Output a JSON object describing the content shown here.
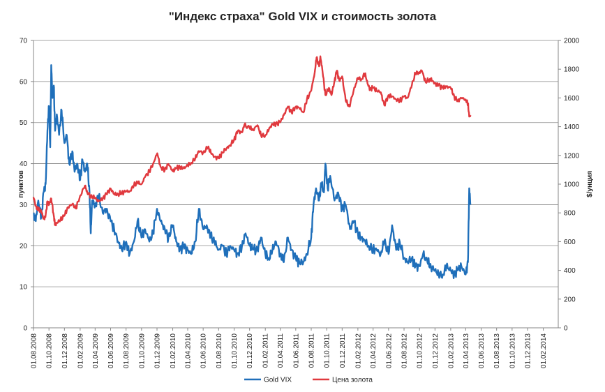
{
  "chart_data": {
    "type": "line",
    "title": "\"Индекс страха\" Gold VIX и стоимость золота",
    "y_left_label": "пунктов",
    "y_right_label": "$/унция",
    "y_left_range": [
      0,
      70
    ],
    "y_left_ticks": [
      "0",
      "10",
      "20",
      "30",
      "40",
      "50",
      "60",
      "70"
    ],
    "y_right_range": [
      0,
      2000
    ],
    "y_right_ticks": [
      "0",
      "200",
      "400",
      "600",
      "800",
      "1000",
      "1200",
      "1400",
      "1600",
      "1800",
      "2000"
    ],
    "x_range": [
      "2008-08-01",
      "2014-04-01"
    ],
    "x_ticks": [
      "01.08.2008",
      "01.10.2008",
      "01.12.2008",
      "01.02.2009",
      "01.04.2009",
      "01.06.2009",
      "01.08.2009",
      "01.10.2009",
      "01.12.2009",
      "01.02.2010",
      "01.04.2010",
      "01.06.2010",
      "01.08.2010",
      "01.10.2010",
      "01.12.2010",
      "01.02.2011",
      "01.04.2011",
      "01.06.2011",
      "01.08.2011",
      "01.10.2011",
      "01.12.2011",
      "01.02.2012",
      "01.04.2012",
      "01.06.2012",
      "01.08.2012",
      "01.10.2012",
      "01.12.2012",
      "01.02.2013",
      "01.04.2013",
      "01.06.2013",
      "01.08.2013",
      "01.10.2013",
      "01.12.2013",
      "01.02.2014"
    ],
    "grid": "horizontal",
    "legend": "bottom",
    "series": [
      {
        "name": "Gold VIX",
        "axis": "left",
        "color": "#1f6fba",
        "points": [
          [
            "2008-08-01",
            28
          ],
          [
            "2008-08-10",
            26
          ],
          [
            "2008-08-20",
            31
          ],
          [
            "2008-09-01",
            27
          ],
          [
            "2008-09-10",
            33
          ],
          [
            "2008-09-18",
            35
          ],
          [
            "2008-09-25",
            48
          ],
          [
            "2008-10-01",
            54
          ],
          [
            "2008-10-06",
            44
          ],
          [
            "2008-10-10",
            64
          ],
          [
            "2008-10-15",
            56
          ],
          [
            "2008-10-20",
            59
          ],
          [
            "2008-10-25",
            48
          ],
          [
            "2008-11-01",
            52
          ],
          [
            "2008-11-10",
            47
          ],
          [
            "2008-11-20",
            53
          ],
          [
            "2008-12-01",
            45
          ],
          [
            "2008-12-10",
            47
          ],
          [
            "2008-12-20",
            40
          ],
          [
            "2009-01-01",
            43
          ],
          [
            "2009-01-10",
            38
          ],
          [
            "2009-01-20",
            40
          ],
          [
            "2009-02-01",
            36
          ],
          [
            "2009-02-10",
            41
          ],
          [
            "2009-02-20",
            38
          ],
          [
            "2009-03-01",
            40
          ],
          [
            "2009-03-10",
            33
          ],
          [
            "2009-03-15",
            23
          ],
          [
            "2009-03-20",
            31
          ],
          [
            "2009-04-01",
            30
          ],
          [
            "2009-04-15",
            32
          ],
          [
            "2009-05-01",
            28
          ],
          [
            "2009-05-15",
            29
          ],
          [
            "2009-06-01",
            26
          ],
          [
            "2009-06-15",
            24
          ],
          [
            "2009-07-01",
            21
          ],
          [
            "2009-07-15",
            19
          ],
          [
            "2009-08-01",
            21
          ],
          [
            "2009-08-15",
            18
          ],
          [
            "2009-09-01",
            21
          ],
          [
            "2009-09-15",
            26
          ],
          [
            "2009-10-01",
            22
          ],
          [
            "2009-10-15",
            24
          ],
          [
            "2009-11-01",
            21
          ],
          [
            "2009-11-15",
            23
          ],
          [
            "2009-12-01",
            29
          ],
          [
            "2009-12-15",
            26
          ],
          [
            "2010-01-01",
            24
          ],
          [
            "2010-01-15",
            22
          ],
          [
            "2010-02-01",
            25
          ],
          [
            "2010-02-15",
            21
          ],
          [
            "2010-03-01",
            19
          ],
          [
            "2010-03-15",
            20
          ],
          [
            "2010-04-01",
            19
          ],
          [
            "2010-04-15",
            18
          ],
          [
            "2010-05-01",
            21
          ],
          [
            "2010-05-15",
            29
          ],
          [
            "2010-06-01",
            24
          ],
          [
            "2010-06-15",
            25
          ],
          [
            "2010-07-01",
            22
          ],
          [
            "2010-07-15",
            21
          ],
          [
            "2010-08-01",
            19
          ],
          [
            "2010-08-15",
            20
          ],
          [
            "2010-09-01",
            18
          ],
          [
            "2010-09-15",
            20
          ],
          [
            "2010-10-01",
            19
          ],
          [
            "2010-10-15",
            18
          ],
          [
            "2010-11-01",
            20
          ],
          [
            "2010-11-15",
            23
          ],
          [
            "2010-12-01",
            20
          ],
          [
            "2010-12-15",
            19
          ],
          [
            "2011-01-01",
            19
          ],
          [
            "2011-01-15",
            22
          ],
          [
            "2011-02-01",
            18
          ],
          [
            "2011-02-15",
            17
          ],
          [
            "2011-03-01",
            19
          ],
          [
            "2011-03-15",
            21
          ],
          [
            "2011-04-01",
            18
          ],
          [
            "2011-04-15",
            16
          ],
          [
            "2011-05-01",
            22
          ],
          [
            "2011-05-15",
            19
          ],
          [
            "2011-06-01",
            17
          ],
          [
            "2011-06-15",
            16
          ],
          [
            "2011-07-01",
            16
          ],
          [
            "2011-07-15",
            18
          ],
          [
            "2011-08-01",
            22
          ],
          [
            "2011-08-10",
            30
          ],
          [
            "2011-08-20",
            34
          ],
          [
            "2011-09-01",
            31
          ],
          [
            "2011-09-10",
            35
          ],
          [
            "2011-09-20",
            33
          ],
          [
            "2011-09-26",
            40
          ],
          [
            "2011-10-05",
            34
          ],
          [
            "2011-10-15",
            37
          ],
          [
            "2011-11-01",
            31
          ],
          [
            "2011-11-15",
            33
          ],
          [
            "2011-12-01",
            29
          ],
          [
            "2011-12-15",
            30
          ],
          [
            "2012-01-01",
            24
          ],
          [
            "2012-01-15",
            26
          ],
          [
            "2012-02-01",
            23
          ],
          [
            "2012-02-15",
            22
          ],
          [
            "2012-03-01",
            21
          ],
          [
            "2012-03-15",
            20
          ],
          [
            "2012-04-01",
            19
          ],
          [
            "2012-04-15",
            19
          ],
          [
            "2012-05-01",
            18
          ],
          [
            "2012-05-15",
            21
          ],
          [
            "2012-06-01",
            18
          ],
          [
            "2012-06-15",
            25
          ],
          [
            "2012-07-01",
            19
          ],
          [
            "2012-07-15",
            21
          ],
          [
            "2012-08-01",
            17
          ],
          [
            "2012-08-15",
            16
          ],
          [
            "2012-09-01",
            17
          ],
          [
            "2012-09-15",
            15
          ],
          [
            "2012-10-01",
            15
          ],
          [
            "2012-10-15",
            18
          ],
          [
            "2012-11-01",
            16
          ],
          [
            "2012-11-15",
            15
          ],
          [
            "2012-12-01",
            14
          ],
          [
            "2012-12-15",
            13
          ],
          [
            "2013-01-01",
            13
          ],
          [
            "2013-01-15",
            15
          ],
          [
            "2013-02-01",
            14
          ],
          [
            "2013-02-15",
            13
          ],
          [
            "2013-03-01",
            14
          ],
          [
            "2013-03-15",
            15
          ],
          [
            "2013-04-01",
            13
          ],
          [
            "2013-04-10",
            16
          ],
          [
            "2013-04-15",
            34
          ],
          [
            "2013-04-20",
            30
          ]
        ]
      },
      {
        "name": "Цена золота",
        "axis": "right",
        "color": "#e0393e",
        "points": [
          [
            "2008-08-01",
            910
          ],
          [
            "2008-08-10",
            850
          ],
          [
            "2008-08-20",
            820
          ],
          [
            "2008-09-01",
            810
          ],
          [
            "2008-09-10",
            760
          ],
          [
            "2008-09-17",
            770
          ],
          [
            "2008-09-25",
            880
          ],
          [
            "2008-10-01",
            860
          ],
          [
            "2008-10-10",
            900
          ],
          [
            "2008-10-20",
            780
          ],
          [
            "2008-10-25",
            720
          ],
          [
            "2008-11-01",
            730
          ],
          [
            "2008-11-15",
            750
          ],
          [
            "2008-12-01",
            780
          ],
          [
            "2008-12-15",
            840
          ],
          [
            "2009-01-01",
            860
          ],
          [
            "2009-01-15",
            830
          ],
          [
            "2009-02-01",
            920
          ],
          [
            "2009-02-20",
            990
          ],
          [
            "2009-03-01",
            940
          ],
          [
            "2009-03-15",
            920
          ],
          [
            "2009-04-01",
            900
          ],
          [
            "2009-04-15",
            880
          ],
          [
            "2009-05-01",
            900
          ],
          [
            "2009-05-15",
            930
          ],
          [
            "2009-06-01",
            970
          ],
          [
            "2009-06-15",
            930
          ],
          [
            "2009-07-01",
            930
          ],
          [
            "2009-07-15",
            940
          ],
          [
            "2009-08-01",
            950
          ],
          [
            "2009-08-15",
            950
          ],
          [
            "2009-09-01",
            990
          ],
          [
            "2009-09-15",
            1010
          ],
          [
            "2009-10-01",
            1000
          ],
          [
            "2009-10-15",
            1050
          ],
          [
            "2009-11-01",
            1090
          ],
          [
            "2009-11-15",
            1140
          ],
          [
            "2009-12-02",
            1215
          ],
          [
            "2009-12-15",
            1120
          ],
          [
            "2010-01-01",
            1100
          ],
          [
            "2010-01-15",
            1140
          ],
          [
            "2010-02-01",
            1090
          ],
          [
            "2010-02-15",
            1110
          ],
          [
            "2010-03-01",
            1120
          ],
          [
            "2010-03-15",
            1110
          ],
          [
            "2010-04-01",
            1130
          ],
          [
            "2010-04-15",
            1150
          ],
          [
            "2010-05-01",
            1180
          ],
          [
            "2010-05-15",
            1230
          ],
          [
            "2010-06-01",
            1220
          ],
          [
            "2010-06-20",
            1255
          ],
          [
            "2010-07-01",
            1220
          ],
          [
            "2010-07-15",
            1190
          ],
          [
            "2010-08-01",
            1180
          ],
          [
            "2010-08-15",
            1220
          ],
          [
            "2010-09-01",
            1250
          ],
          [
            "2010-09-15",
            1270
          ],
          [
            "2010-10-01",
            1310
          ],
          [
            "2010-10-15",
            1370
          ],
          [
            "2010-11-01",
            1360
          ],
          [
            "2010-11-10",
            1410
          ],
          [
            "2010-12-01",
            1390
          ],
          [
            "2010-12-15",
            1380
          ],
          [
            "2011-01-01",
            1410
          ],
          [
            "2011-01-15",
            1340
          ],
          [
            "2011-02-01",
            1340
          ],
          [
            "2011-02-15",
            1380
          ],
          [
            "2011-03-01",
            1420
          ],
          [
            "2011-03-15",
            1420
          ],
          [
            "2011-04-01",
            1430
          ],
          [
            "2011-04-15",
            1480
          ],
          [
            "2011-05-01",
            1540
          ],
          [
            "2011-05-15",
            1500
          ],
          [
            "2011-06-01",
            1540
          ],
          [
            "2011-06-15",
            1530
          ],
          [
            "2011-07-01",
            1500
          ],
          [
            "2011-07-15",
            1590
          ],
          [
            "2011-08-01",
            1650
          ],
          [
            "2011-08-15",
            1780
          ],
          [
            "2011-08-22",
            1880
          ],
          [
            "2011-09-01",
            1820
          ],
          [
            "2011-09-06",
            1890
          ],
          [
            "2011-09-15",
            1780
          ],
          [
            "2011-09-26",
            1620
          ],
          [
            "2011-10-10",
            1670
          ],
          [
            "2011-10-20",
            1620
          ],
          [
            "2011-11-01",
            1720
          ],
          [
            "2011-11-10",
            1790
          ],
          [
            "2011-11-20",
            1720
          ],
          [
            "2011-12-01",
            1750
          ],
          [
            "2011-12-15",
            1580
          ],
          [
            "2011-12-29",
            1540
          ],
          [
            "2012-01-15",
            1650
          ],
          [
            "2012-02-01",
            1740
          ],
          [
            "2012-02-15",
            1730
          ],
          [
            "2012-02-29",
            1770
          ],
          [
            "2012-03-10",
            1700
          ],
          [
            "2012-03-20",
            1660
          ],
          [
            "2012-04-01",
            1670
          ],
          [
            "2012-04-15",
            1650
          ],
          [
            "2012-05-01",
            1640
          ],
          [
            "2012-05-15",
            1550
          ],
          [
            "2012-06-01",
            1620
          ],
          [
            "2012-06-15",
            1610
          ],
          [
            "2012-07-01",
            1590
          ],
          [
            "2012-07-15",
            1580
          ],
          [
            "2012-08-01",
            1610
          ],
          [
            "2012-08-15",
            1600
          ],
          [
            "2012-09-01",
            1690
          ],
          [
            "2012-09-15",
            1770
          ],
          [
            "2012-10-01",
            1780
          ],
          [
            "2012-10-10",
            1790
          ],
          [
            "2012-10-25",
            1710
          ],
          [
            "2012-11-10",
            1730
          ],
          [
            "2012-11-20",
            1720
          ],
          [
            "2012-12-01",
            1700
          ],
          [
            "2012-12-15",
            1690
          ],
          [
            "2013-01-01",
            1670
          ],
          [
            "2013-01-15",
            1680
          ],
          [
            "2013-02-01",
            1670
          ],
          [
            "2013-02-15",
            1610
          ],
          [
            "2013-03-01",
            1580
          ],
          [
            "2013-03-15",
            1600
          ],
          [
            "2013-04-01",
            1590
          ],
          [
            "2013-04-10",
            1560
          ],
          [
            "2013-04-15",
            1470
          ],
          [
            "2013-04-20",
            1480
          ]
        ]
      }
    ]
  }
}
